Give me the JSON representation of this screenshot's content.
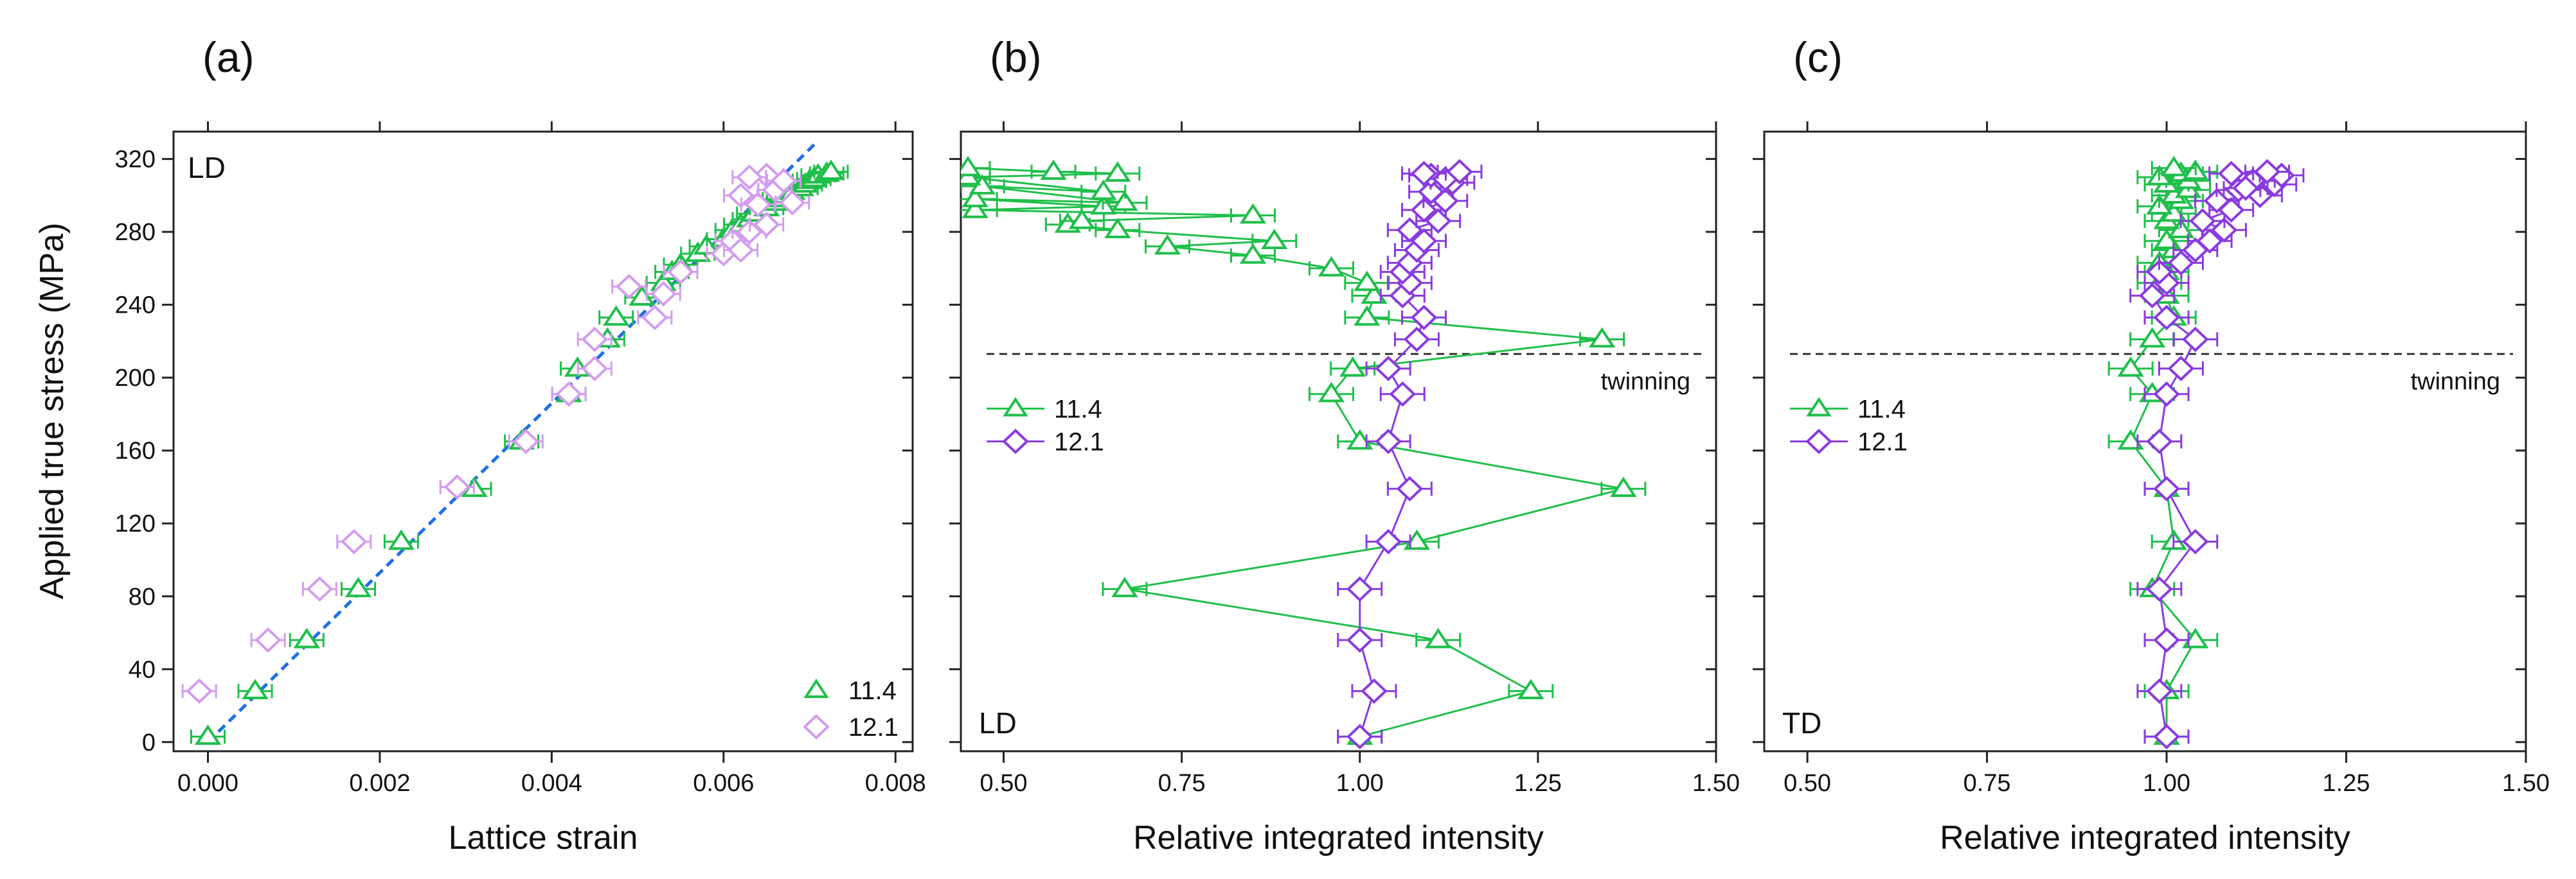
{
  "colors": {
    "green": "#1fbf4a",
    "purple": "#8a3be0",
    "light_purple": "#d49cf0",
    "fit": "#1e6fe8",
    "dash": "#333333",
    "axis": "#222222"
  },
  "y_axis": {
    "title": "Applied true stress (MPa)",
    "ticks": [
      0,
      40,
      80,
      120,
      160,
      200,
      240,
      280,
      320
    ],
    "ylim": [
      -5,
      335
    ]
  },
  "chart_data": [
    {
      "panel": "(a)",
      "type": "scatter",
      "corner_label": "LD",
      "xlabel": "Lattice strain",
      "ylabel": "Applied true stress (MPa)",
      "xlim": [
        -0.0004,
        0.0082
      ],
      "xticks": [
        0.0,
        0.002,
        0.004,
        0.006,
        0.008
      ],
      "xtick_labels": [
        "0.000",
        "0.002",
        "0.004",
        "0.006",
        "0.008"
      ],
      "legend": {
        "position": "bottom-right",
        "entries": [
          "11.4",
          "12.1"
        ]
      },
      "fit_line": {
        "x": [
          0.0,
          0.0071
        ],
        "y": [
          0,
          330
        ]
      },
      "series": [
        {
          "name": "11.4",
          "marker": "triangle",
          "color_key": "green",
          "connected": false,
          "points": [
            [
              0.0,
              3
            ],
            [
              0.00055,
              28
            ],
            [
              0.00115,
              56
            ],
            [
              0.00175,
              84
            ],
            [
              0.00225,
              110
            ],
            [
              0.0031,
              139
            ],
            [
              0.00365,
              165
            ],
            [
              0.0042,
              191
            ],
            [
              0.0043,
              205
            ],
            [
              0.00465,
              221
            ],
            [
              0.00475,
              233
            ],
            [
              0.00505,
              244
            ],
            [
              0.0053,
              252
            ],
            [
              0.0054,
              258
            ],
            [
              0.0055,
              262
            ],
            [
              0.0057,
              268
            ],
            [
              0.0058,
              272
            ],
            [
              0.006,
              276
            ],
            [
              0.0061,
              281
            ],
            [
              0.0062,
              284
            ],
            [
              0.0063,
              287
            ],
            [
              0.00635,
              290
            ],
            [
              0.0065,
              293
            ],
            [
              0.0066,
              296
            ],
            [
              0.00665,
              298
            ],
            [
              0.0067,
              300
            ],
            [
              0.0068,
              302
            ],
            [
              0.0069,
              304
            ],
            [
              0.00695,
              306
            ],
            [
              0.007,
              308
            ],
            [
              0.00705,
              309
            ],
            [
              0.0071,
              311
            ],
            [
              0.0072,
              312
            ],
            [
              0.00725,
              313
            ]
          ]
        },
        {
          "name": "12.1",
          "marker": "diamond",
          "color_key": "light_purple",
          "connected": false,
          "points": [
            [
              -0.0001,
              28
            ],
            [
              0.0007,
              56
            ],
            [
              0.0013,
              84
            ],
            [
              0.0017,
              110
            ],
            [
              0.0029,
              140
            ],
            [
              0.0037,
              165
            ],
            [
              0.0042,
              191
            ],
            [
              0.0045,
              205
            ],
            [
              0.0045,
              221
            ],
            [
              0.0052,
              233
            ],
            [
              0.0049,
              250
            ],
            [
              0.0053,
              246
            ],
            [
              0.0055,
              258
            ],
            [
              0.006,
              268
            ],
            [
              0.0061,
              275
            ],
            [
              0.0062,
              270
            ],
            [
              0.0063,
              280
            ],
            [
              0.0065,
              284
            ],
            [
              0.0062,
              300
            ],
            [
              0.0064,
              295
            ],
            [
              0.0066,
              303
            ],
            [
              0.0065,
              311
            ],
            [
              0.0067,
              308
            ],
            [
              0.0068,
              296
            ],
            [
              0.0063,
              310
            ]
          ]
        }
      ]
    },
    {
      "panel": "(b)",
      "type": "line",
      "corner_label": "LD",
      "xlabel": "Relative integrated intensity",
      "xlim": [
        0.44,
        1.5
      ],
      "xticks": [
        0.5,
        0.75,
        1.0,
        1.25,
        1.5
      ],
      "xtick_labels": [
        "0.50",
        "0.75",
        "1.00",
        "1.25",
        "1.50"
      ],
      "legend": {
        "position": "left",
        "entries": [
          "11.4",
          "12.1"
        ]
      },
      "threshold": {
        "y": 213,
        "label": "twinning"
      },
      "series": [
        {
          "name": "11.4",
          "marker": "triangle",
          "color_key": "green",
          "connected": true,
          "points": [
            [
              1.0,
              3
            ],
            [
              1.24,
              28
            ],
            [
              1.11,
              56
            ],
            [
              0.67,
              84
            ],
            [
              1.08,
              110
            ],
            [
              1.37,
              139
            ],
            [
              1.0,
              165
            ],
            [
              0.96,
              191
            ],
            [
              0.99,
              205
            ],
            [
              1.34,
              221
            ],
            [
              1.01,
              233
            ],
            [
              1.02,
              245
            ],
            [
              1.01,
              252
            ],
            [
              0.96,
              260
            ],
            [
              0.85,
              267
            ],
            [
              0.73,
              272
            ],
            [
              0.88,
              275
            ],
            [
              0.66,
              281
            ],
            [
              0.59,
              284
            ],
            [
              0.61,
              286
            ],
            [
              0.85,
              289
            ],
            [
              0.46,
              292
            ],
            [
              0.64,
              294
            ],
            [
              0.46,
              298
            ],
            [
              0.67,
              296
            ],
            [
              0.47,
              305
            ],
            [
              0.64,
              302
            ],
            [
              0.45,
              310
            ],
            [
              0.66,
              312
            ],
            [
              0.57,
              313
            ],
            [
              0.45,
              315
            ]
          ]
        },
        {
          "name": "12.1",
          "marker": "diamond",
          "color_key": "purple",
          "connected": true,
          "points": [
            [
              1.0,
              3
            ],
            [
              1.02,
              28
            ],
            [
              1.0,
              56
            ],
            [
              1.0,
              84
            ],
            [
              1.04,
              110
            ],
            [
              1.07,
              139
            ],
            [
              1.04,
              165
            ],
            [
              1.06,
              191
            ],
            [
              1.04,
              205
            ],
            [
              1.08,
              221
            ],
            [
              1.09,
              233
            ],
            [
              1.06,
              245
            ],
            [
              1.07,
              252
            ],
            [
              1.06,
              258
            ],
            [
              1.07,
              263
            ],
            [
              1.08,
              270
            ],
            [
              1.09,
              275
            ],
            [
              1.07,
              281
            ],
            [
              1.11,
              286
            ],
            [
              1.09,
              292
            ],
            [
              1.12,
              297
            ],
            [
              1.1,
              302
            ],
            [
              1.13,
              307
            ],
            [
              1.1,
              311
            ],
            [
              1.12,
              309
            ],
            [
              1.09,
              312
            ],
            [
              1.14,
              313
            ]
          ]
        }
      ]
    },
    {
      "panel": "(c)",
      "type": "line",
      "corner_label": "TD",
      "xlabel": "Relative integrated intensity",
      "xlim": [
        0.44,
        1.5
      ],
      "xticks": [
        0.5,
        0.75,
        1.0,
        1.25,
        1.5
      ],
      "xtick_labels": [
        "0.50",
        "0.75",
        "1.00",
        "1.25",
        "1.50"
      ],
      "legend": {
        "position": "left",
        "entries": [
          "11.4",
          "12.1"
        ]
      },
      "threshold": {
        "y": 213,
        "label": "twinning"
      },
      "series": [
        {
          "name": "11.4",
          "marker": "triangle",
          "color_key": "green",
          "connected": true,
          "points": [
            [
              1.0,
              3
            ],
            [
              1.0,
              28
            ],
            [
              1.04,
              56
            ],
            [
              0.98,
              84
            ],
            [
              1.01,
              110
            ],
            [
              1.0,
              139
            ],
            [
              0.95,
              165
            ],
            [
              0.98,
              191
            ],
            [
              0.95,
              205
            ],
            [
              0.98,
              221
            ],
            [
              1.01,
              233
            ],
            [
              1.0,
              245
            ],
            [
              0.99,
              252
            ],
            [
              1.0,
              258
            ],
            [
              0.99,
              263
            ],
            [
              1.01,
              270
            ],
            [
              1.0,
              275
            ],
            [
              1.02,
              281
            ],
            [
              1.0,
              286
            ],
            [
              1.01,
              290
            ],
            [
              0.99,
              294
            ],
            [
              1.02,
              297
            ],
            [
              1.01,
              300
            ],
            [
              1.03,
              303
            ],
            [
              1.0,
              306
            ],
            [
              1.03,
              308
            ],
            [
              0.99,
              310
            ],
            [
              1.02,
              312
            ],
            [
              1.04,
              313
            ],
            [
              1.01,
              315
            ]
          ]
        },
        {
          "name": "12.1",
          "marker": "diamond",
          "color_key": "purple",
          "connected": true,
          "points": [
            [
              1.0,
              3
            ],
            [
              0.99,
              28
            ],
            [
              1.0,
              56
            ],
            [
              0.99,
              84
            ],
            [
              1.04,
              110
            ],
            [
              1.0,
              139
            ],
            [
              0.99,
              165
            ],
            [
              1.0,
              191
            ],
            [
              1.02,
              205
            ],
            [
              1.04,
              221
            ],
            [
              1.0,
              233
            ],
            [
              0.98,
              245
            ],
            [
              1.0,
              252
            ],
            [
              0.99,
              258
            ],
            [
              1.02,
              263
            ],
            [
              1.04,
              270
            ],
            [
              1.06,
              275
            ],
            [
              1.08,
              281
            ],
            [
              1.05,
              286
            ],
            [
              1.09,
              292
            ],
            [
              1.07,
              297
            ],
            [
              1.13,
              300
            ],
            [
              1.1,
              303
            ],
            [
              1.15,
              306
            ],
            [
              1.12,
              308
            ],
            [
              1.16,
              311
            ],
            [
              1.14,
              313
            ],
            [
              1.09,
              312
            ],
            [
              1.11,
              304
            ]
          ]
        }
      ]
    }
  ]
}
